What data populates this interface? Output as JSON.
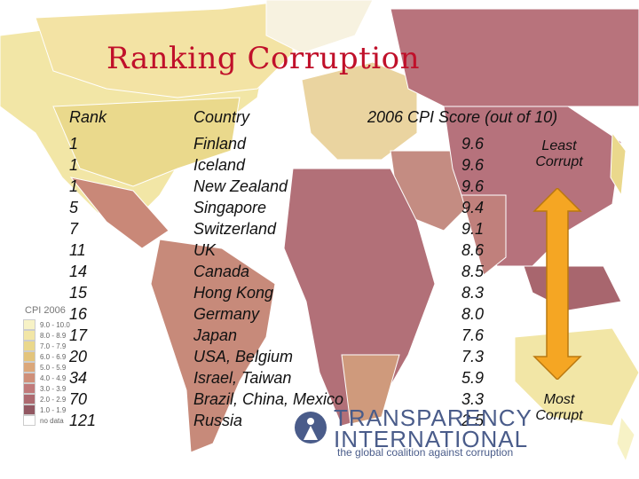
{
  "title": "Ranking Corruption",
  "headers": {
    "rank": "Rank",
    "country": "Country",
    "score": "2006 CPI Score (out of 10)"
  },
  "rows": [
    {
      "rank": "1",
      "country": "Finland",
      "score": "9.6"
    },
    {
      "rank": "1",
      "country": "Iceland",
      "score": "9.6"
    },
    {
      "rank": "1",
      "country": "New Zealand",
      "score": "9.6"
    },
    {
      "rank": "5",
      "country": "Singapore",
      "score": "9.4"
    },
    {
      "rank": "7",
      "country": "Switzerland",
      "score": "9.1"
    },
    {
      "rank": "11",
      "country": "UK",
      "score": "8.6"
    },
    {
      "rank": "14",
      "country": "Canada",
      "score": "8.5"
    },
    {
      "rank": "15",
      "country": "Hong Kong",
      "score": "8.3"
    },
    {
      "rank": "16",
      "country": "Germany",
      "score": "8.0"
    },
    {
      "rank": "17",
      "country": "Japan",
      "score": "7.6"
    },
    {
      "rank": "20",
      "country": "USA, Belgium",
      "score": "7.3"
    },
    {
      "rank": "34",
      "country": "Israel, Taiwan",
      "score": "5.9"
    },
    {
      "rank": "70",
      "country": "Brazil, China, Mexico",
      "score": "3.3"
    },
    {
      "rank": "121",
      "country": "Russia",
      "score": "2.5"
    }
  ],
  "scale_labels": {
    "top_line1": "Least",
    "top_line2": "Corrupt",
    "bottom_line1": "Most",
    "bottom_line2": "Corrupt"
  },
  "legend": {
    "title": "CPI 2006",
    "items": [
      {
        "label": "9.0 - 10.0",
        "color": "#f7f2c6"
      },
      {
        "label": "8.0 - 8.9",
        "color": "#f2e6a6"
      },
      {
        "label": "7.0 - 7.9",
        "color": "#ead88c"
      },
      {
        "label": "6.0 - 6.9",
        "color": "#e3c47c"
      },
      {
        "label": "5.0 - 5.9",
        "color": "#dba77a"
      },
      {
        "label": "4.0 - 4.9",
        "color": "#cf8f79"
      },
      {
        "label": "3.0 - 3.9",
        "color": "#c07a7a"
      },
      {
        "label": "2.0 - 2.9",
        "color": "#ad6a70"
      },
      {
        "label": "1.0 - 1.9",
        "color": "#925862"
      },
      {
        "label": "no data",
        "color": "#ffffff"
      }
    ]
  },
  "logo": {
    "line1": "TRANSPARENCY",
    "line2": "INTERNATIONAL",
    "tagline": "the global coalition against corruption"
  },
  "colors": {
    "title": "#c0102a",
    "arrow": "#f5a623",
    "logo": "#4a5c8a",
    "ocean": "#ffffff",
    "land_high": "#f2e6a6",
    "land_low": "#ad6a70"
  }
}
